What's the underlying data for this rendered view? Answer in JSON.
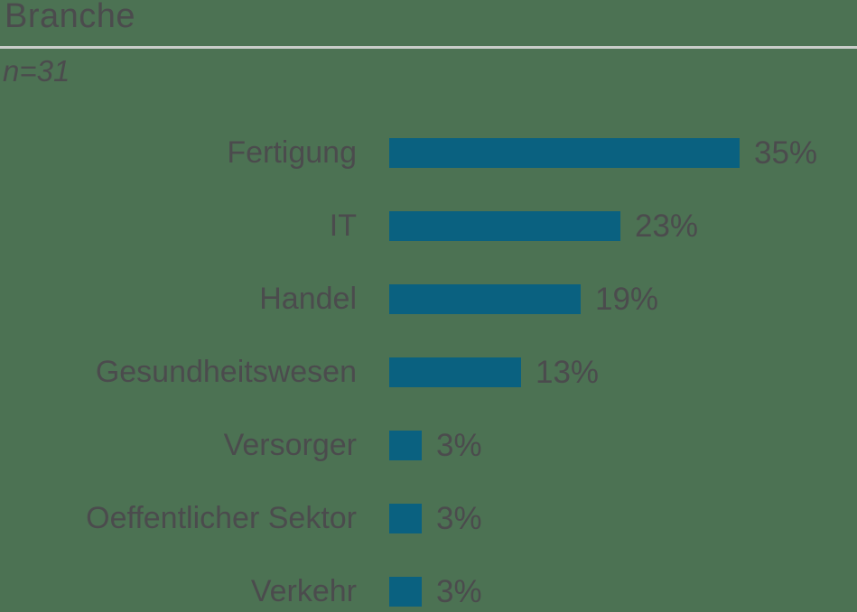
{
  "header": {
    "title": "Branche",
    "sample_size": "n=31"
  },
  "colors": {
    "background": "#4C7253",
    "bar": "#0A6180",
    "text": "#4B4B4D",
    "divider": "#C9CDC9"
  },
  "chart_data": {
    "type": "bar",
    "orientation": "horizontal",
    "title": "Branche",
    "subtitle": "n=31",
    "categories": [
      "Fertigung",
      "IT",
      "Handel",
      "Gesundheitswesen",
      "Versorger",
      "Oeffentlicher Sektor",
      "Verkehr"
    ],
    "values": [
      35,
      23,
      19,
      13,
      3,
      3,
      3
    ],
    "value_suffix": "%",
    "value_labels": [
      "35%",
      "23%",
      "19%",
      "13%",
      "3%",
      "3%",
      "3%"
    ],
    "xlim": [
      0,
      46
    ],
    "grid": "off",
    "legend": "none",
    "bar_labels_position": "right-of-bar",
    "category_labels_position": "left-of-bar"
  }
}
